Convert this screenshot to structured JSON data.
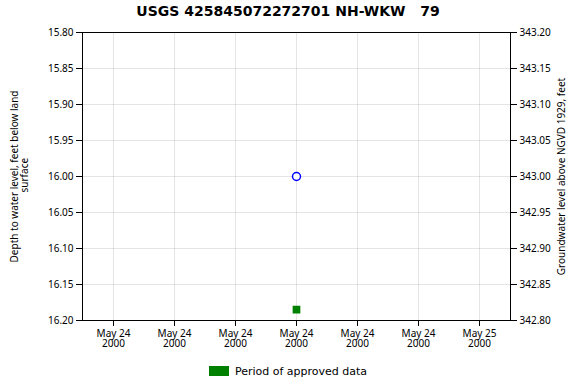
{
  "chart_data": {
    "type": "scatter",
    "title": "USGS 425845072272701 NH-WKW   79",
    "ylabel": "Depth to water level, feet below land\n surface",
    "y2label": "Groundwater level above NGVD 1929, feet",
    "categories": [
      "May 24\n2000",
      "May 24\n2000",
      "May 24\n2000",
      "May 24\n2000",
      "May 24\n2000",
      "May 24\n2000",
      "May 25\n2000"
    ],
    "series": [
      {
        "color": "blue",
        "marker": "circle",
        "values": [
          null,
          null,
          null,
          16.0,
          null,
          null,
          null
        ]
      },
      {
        "name": "Period of approved data",
        "color": "green",
        "marker": "square",
        "values": [
          null,
          null,
          null,
          16.185,
          null,
          null,
          null
        ]
      }
    ],
    "ylim": [
      16.2,
      15.8
    ],
    "yticks": [
      {
        "value": 15.8,
        "label": "15.80"
      },
      {
        "value": 15.85,
        "label": "15.85"
      },
      {
        "value": 15.9,
        "label": "15.90"
      },
      {
        "value": 15.95,
        "label": "15.95"
      },
      {
        "value": 16.0,
        "label": "16.00"
      },
      {
        "value": 16.05,
        "label": "16.05"
      },
      {
        "value": 16.1,
        "label": "16.10"
      },
      {
        "value": 16.15,
        "label": "16.15"
      },
      {
        "value": 16.2,
        "label": "16.20"
      }
    ],
    "y2lim": [
      342.8,
      343.2
    ],
    "y2ticks": [
      {
        "value": 343.2,
        "label": "343.20"
      },
      {
        "value": 343.15,
        "label": "343.15"
      },
      {
        "value": 343.1,
        "label": "343.10"
      },
      {
        "value": 343.05,
        "label": "343.05"
      },
      {
        "value": 343.0,
        "label": "343.00"
      },
      {
        "value": 342.95,
        "label": "342.95"
      },
      {
        "value": 342.9,
        "label": "342.90"
      },
      {
        "value": 342.85,
        "label": "342.85"
      },
      {
        "value": 342.8,
        "label": "342.80"
      }
    ],
    "grid": true,
    "legend": "bottom"
  }
}
